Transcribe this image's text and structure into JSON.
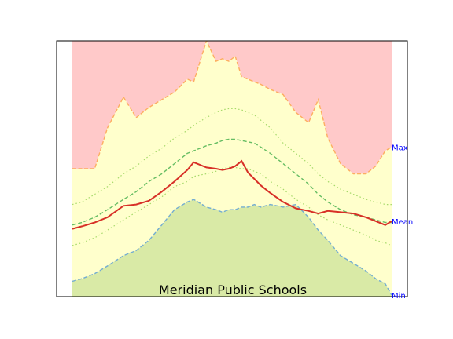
{
  "chart_data": {
    "type": "area",
    "title": "Meridian Public Schools",
    "xlabel": "",
    "ylabel": "",
    "xlim": [
      0,
      100
    ],
    "ylim": [
      0,
      100
    ],
    "grid": false,
    "legend": "none",
    "side_labels": [
      {
        "text": "Max",
        "y": 58.5
      },
      {
        "text": "Mean",
        "y": 29.5
      },
      {
        "text": "Min",
        "y": 0.6
      }
    ],
    "x": [
      0,
      3,
      7,
      11,
      16,
      20,
      24,
      28,
      32,
      36,
      38,
      42,
      45,
      47,
      49,
      51,
      53,
      55,
      57,
      59,
      62,
      66,
      70,
      74,
      77,
      80,
      84,
      88,
      92,
      95,
      98,
      100
    ],
    "series": [
      {
        "role": "max",
        "color": "#fdae61",
        "values": [
          50,
          50,
          50,
          66,
          78,
          70,
          74,
          77,
          80,
          85,
          84,
          100,
          92,
          93,
          92,
          94,
          86,
          85,
          84,
          83,
          81,
          79,
          72,
          68,
          77,
          62,
          52,
          48,
          48,
          51,
          57,
          58.5
        ]
      },
      {
        "role": "min",
        "color": "#74add1",
        "values": [
          6,
          7,
          9,
          12,
          16,
          18,
          22,
          28,
          34,
          37,
          38,
          35,
          34,
          33,
          34,
          34,
          35,
          35,
          36,
          35,
          36,
          35,
          36,
          31,
          26,
          22,
          16,
          13,
          10,
          7,
          5,
          0.6
        ]
      },
      {
        "role": "mean",
        "color": "#d73027",
        "values": [
          26.5,
          27.5,
          29,
          31,
          35.5,
          36,
          37.5,
          41,
          45,
          49.5,
          52.5,
          50.5,
          50,
          49.5,
          50,
          51,
          53,
          48.5,
          46,
          43.5,
          40.5,
          37,
          34.5,
          33.5,
          32.5,
          33.5,
          33,
          32.5,
          31,
          29.5,
          28,
          29.5
        ]
      },
      {
        "role": "upper-1",
        "color": "#a6d96a",
        "values": [
          36,
          37,
          40,
          43,
          48,
          51,
          55,
          58,
          62,
          65,
          67,
          70,
          72,
          73,
          73.5,
          73.5,
          73,
          72,
          71,
          69,
          66,
          60,
          56,
          52,
          48,
          45,
          42,
          40,
          38,
          37,
          36,
          36
        ]
      },
      {
        "role": "lower-1",
        "color": "#a6d96a",
        "values": [
          20,
          21,
          23,
          26,
          30,
          33,
          36,
          39,
          43,
          45,
          47,
          48,
          49,
          50,
          50.5,
          50.5,
          50,
          50,
          49,
          48,
          45,
          42,
          38,
          35,
          32,
          30,
          28,
          26,
          24,
          22,
          21,
          20
        ]
      },
      {
        "role": "upper-2",
        "color": "#66bd63",
        "values": [
          28,
          29,
          31,
          34,
          38,
          41,
          45,
          48,
          52,
          56,
          57,
          59,
          60,
          61,
          61.5,
          61.5,
          61,
          60.5,
          60,
          58.5,
          56,
          52,
          48,
          44,
          40,
          37,
          34,
          32,
          31,
          30,
          29,
          29
        ]
      }
    ]
  }
}
